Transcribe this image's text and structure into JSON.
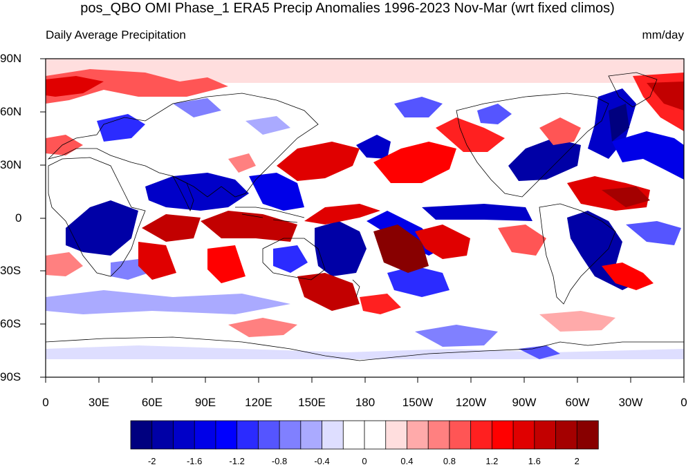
{
  "title": "pos_QBO OMI Phase_1 ERA5 Precip Anomalies 1996-2023 Nov-Mar (wrt fixed climos)",
  "subtitle_left": "Daily Average Precipitation",
  "subtitle_right": "mm/day",
  "lat_labels": [
    "90N",
    "60N",
    "30N",
    "0",
    "30S",
    "60S",
    "90S"
  ],
  "lon_labels": [
    "0",
    "30E",
    "60E",
    "90E",
    "120E",
    "150E",
    "180",
    "150W",
    "120W",
    "90W",
    "60W",
    "30W",
    "0"
  ],
  "colorbar": {
    "colors": [
      "#00007f",
      "#0000a6",
      "#0000c8",
      "#0000e8",
      "#0000ff",
      "#2b2bff",
      "#5555ff",
      "#8080ff",
      "#aaaaff",
      "#dedeff",
      "#ffffff",
      "#ffffff",
      "#ffdede",
      "#ffaaaa",
      "#ff8080",
      "#ff5555",
      "#ff2020",
      "#ff0000",
      "#e00000",
      "#c20000",
      "#a40000",
      "#880000"
    ],
    "tick_labels": [
      "-2",
      "-1.6",
      "-1.2",
      "-0.8",
      "-0.4",
      "0",
      "0.4",
      "0.8",
      "1.2",
      "1.6",
      "2"
    ]
  }
}
